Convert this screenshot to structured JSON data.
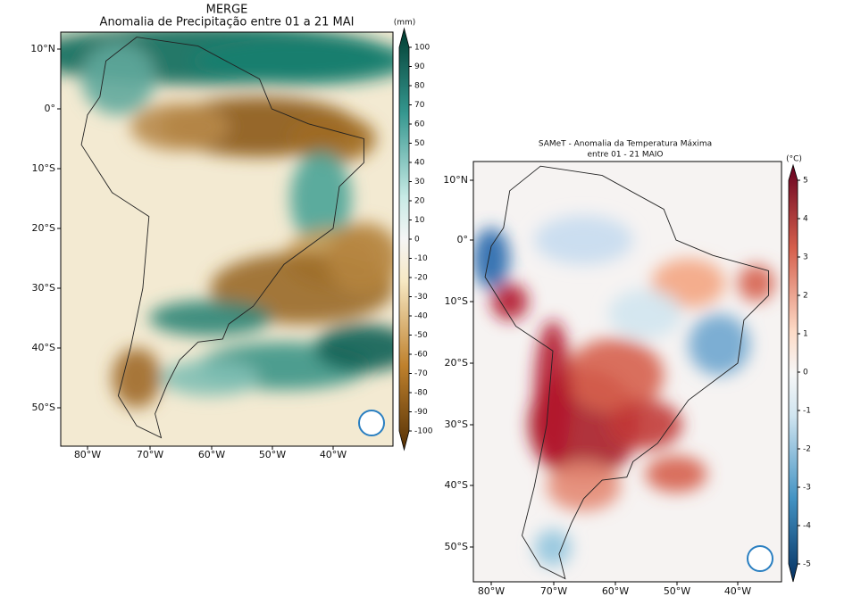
{
  "panels": [
    {
      "title": "MERGE",
      "subtitle": "Anomalia de Precipitação entre 01 a 21 MAI",
      "unit": "(mm)",
      "colorbar_ticks": [
        100,
        90,
        80,
        70,
        60,
        50,
        40,
        30,
        20,
        10,
        0,
        -10,
        -20,
        -30,
        -40,
        -50,
        -60,
        -70,
        -80,
        -90,
        -100
      ],
      "lat_labels": [
        "10°N",
        "0°",
        "10°S",
        "20°S",
        "30°S",
        "40°S",
        "50°S"
      ],
      "lon_labels": [
        "80°W",
        "70°W",
        "60°W",
        "50°W",
        "40°W"
      ]
    },
    {
      "title": "SAMeT - Anomalia da Temperatura Máxima",
      "subtitle": "entre 01 - 21 MAIO",
      "unit": "(°C)",
      "colorbar_ticks": [
        5,
        4,
        3,
        2,
        1,
        0,
        -1,
        -2,
        -3,
        -4,
        -5
      ],
      "lat_labels": [
        "10°N",
        "0°",
        "10°S",
        "20°S",
        "30°S",
        "40°S",
        "50°S"
      ],
      "lon_labels": [
        "80°W",
        "70°W",
        "60°W",
        "50°W",
        "40°W"
      ]
    }
  ]
}
